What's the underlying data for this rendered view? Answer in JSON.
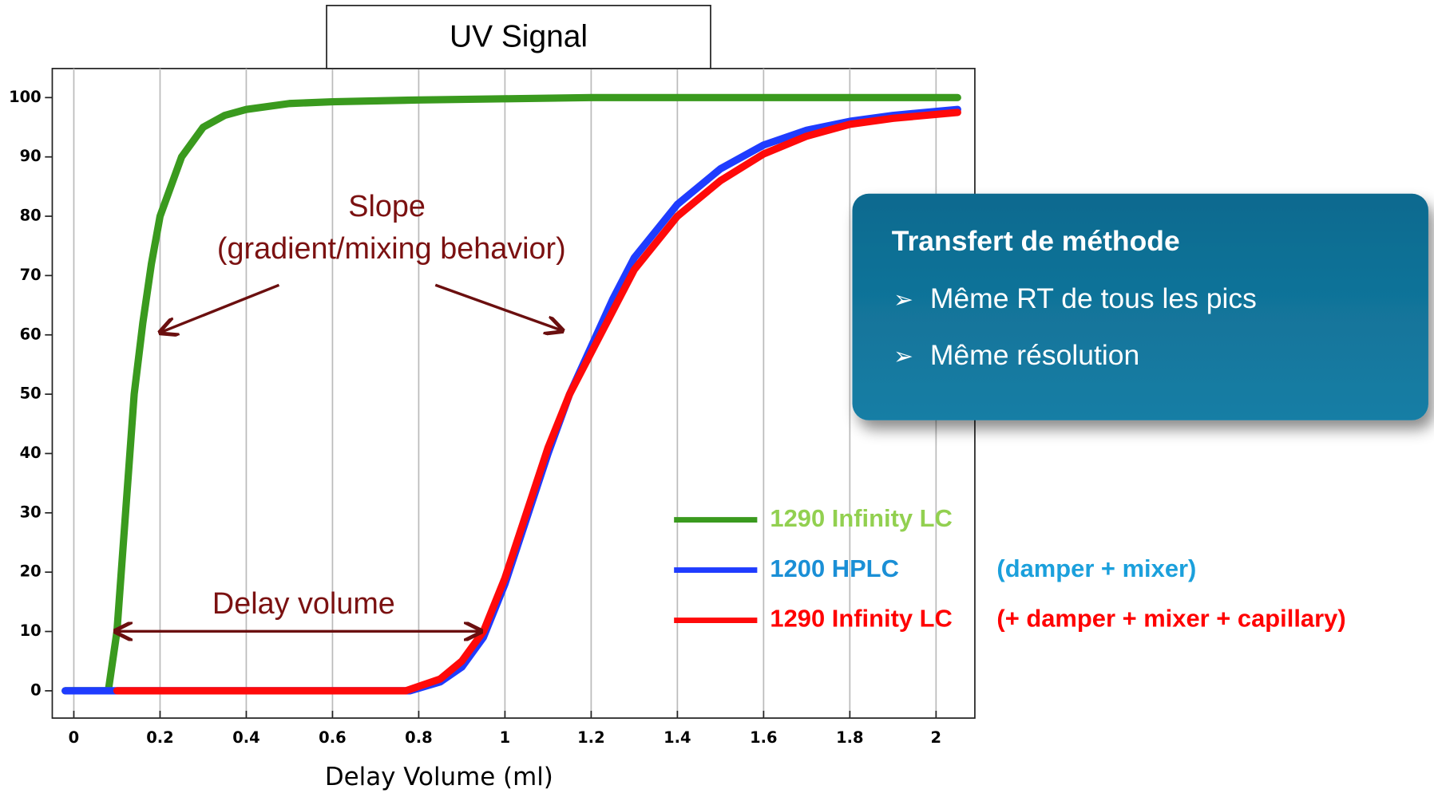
{
  "chart_data": {
    "type": "line",
    "title": "UV Signal",
    "x_label": "Delay Volume (ml)",
    "xlim": [
      -0.05,
      2.09
    ],
    "ylim": [
      -4.6,
      104.9
    ],
    "xticks": [
      0,
      0.2,
      0.4,
      0.6,
      0.8,
      1,
      1.2,
      1.4,
      1.6,
      1.8,
      2
    ],
    "yticks": [
      0,
      10,
      20,
      30,
      40,
      50,
      60,
      70,
      80,
      90,
      100
    ],
    "grid": "x",
    "annotations": {
      "slope": [
        "Slope",
        "(gradient/mixing behavior)"
      ],
      "delay": "Delay volume"
    },
    "series": [
      {
        "name": "1290 Infinity LC",
        "color": "#3a9a1e",
        "label_color": "#92d050",
        "x": [
          -0.02,
          0.08,
          0.1,
          0.12,
          0.14,
          0.16,
          0.18,
          0.2,
          0.25,
          0.3,
          0.35,
          0.4,
          0.5,
          0.6,
          0.8,
          1.0,
          1.2,
          2.05
        ],
        "values": [
          0,
          0,
          10,
          30,
          50,
          62,
          72,
          80,
          90,
          95,
          97,
          98,
          99,
          99.3,
          99.6,
          99.8,
          100,
          100
        ]
      },
      {
        "name": "1200 HPLC",
        "detail": "(damper + mixer)",
        "color": "#1f3cff",
        "label_color": "#1a8fd6",
        "detail_color": "#1ba0dc",
        "x": [
          -0.02,
          0.78,
          0.85,
          0.9,
          0.95,
          1.0,
          1.05,
          1.1,
          1.15,
          1.2,
          1.25,
          1.3,
          1.4,
          1.5,
          1.6,
          1.7,
          1.8,
          1.9,
          2.05
        ],
        "values": [
          0,
          0,
          1.5,
          4,
          9,
          18,
          29,
          40,
          50,
          58,
          66,
          73,
          82,
          88,
          92,
          94.5,
          96,
          97,
          98
        ]
      },
      {
        "name": "1290 Infinity LC",
        "detail": "(+ damper + mixer + capillary)",
        "color": "#ff0a0a",
        "label_color": "#ff0000",
        "detail_color": "#ff0000",
        "x": [
          0.1,
          0.77,
          0.85,
          0.9,
          0.95,
          1.0,
          1.05,
          1.1,
          1.15,
          1.2,
          1.3,
          1.4,
          1.5,
          1.6,
          1.7,
          1.8,
          1.9,
          2.05
        ],
        "values": [
          0,
          0,
          2,
          5,
          10,
          19,
          30,
          41,
          50,
          57,
          71,
          80,
          86,
          90.5,
          93.5,
          95.5,
          96.5,
          97.5
        ]
      }
    ]
  },
  "callout": {
    "title": "Transfert de méthode",
    "items": [
      "Même RT de tous les pics",
      "Même résolution"
    ]
  }
}
